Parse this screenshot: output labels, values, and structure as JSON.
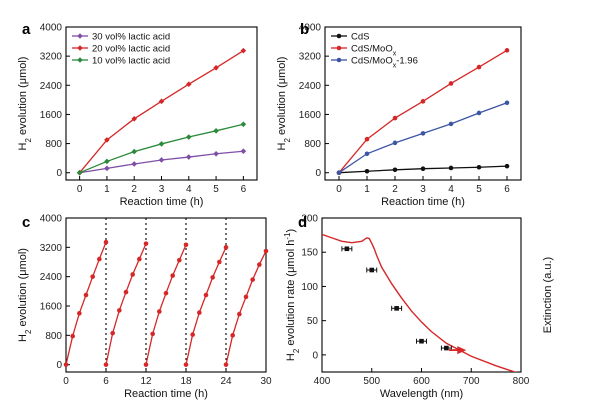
{
  "chart_data": [
    {
      "panel_label": "a",
      "type": "line",
      "xlabel": "Reaction time (h)",
      "ylabel": [
        "H",
        "2",
        " evolution (μmol)"
      ],
      "xlim": [
        -0.5,
        6.5
      ],
      "ylim": [
        -200,
        4000
      ],
      "xticks": [
        "0",
        "1",
        "2",
        "3",
        "4",
        "5",
        "6"
      ],
      "yticks": [
        "0",
        "800",
        "1600",
        "2400",
        "3200",
        "4000"
      ],
      "legend_position": "top-left",
      "series": [
        {
          "name": "30 vol% lactic acid",
          "color": "#7f4fa8",
          "marker": "diamond",
          "x": [
            0,
            1,
            2,
            3,
            4,
            5,
            6
          ],
          "y": [
            0,
            120,
            240,
            350,
            430,
            520,
            590
          ]
        },
        {
          "name": "20 vol% lactic acid",
          "color": "#d62728",
          "marker": "diamond",
          "x": [
            0,
            1,
            2,
            3,
            4,
            5,
            6
          ],
          "y": [
            0,
            900,
            1480,
            1960,
            2430,
            2880,
            3350
          ]
        },
        {
          "name": "10 vol% lactic acid",
          "color": "#2a8a3a",
          "marker": "diamond",
          "x": [
            0,
            1,
            2,
            3,
            4,
            5,
            6
          ],
          "y": [
            0,
            310,
            580,
            790,
            980,
            1150,
            1330
          ]
        }
      ]
    },
    {
      "panel_label": "b",
      "type": "line",
      "xlabel": "Reaction time (h)",
      "ylabel": [
        "H",
        "2",
        " evolution (μmol)"
      ],
      "xlim": [
        -0.5,
        6.5
      ],
      "ylim": [
        -200,
        4000
      ],
      "xticks": [
        "0",
        "1",
        "2",
        "3",
        "4",
        "5",
        "6"
      ],
      "yticks": [
        "0",
        "800",
        "1600",
        "2400",
        "3200",
        "4000"
      ],
      "legend_position": "top-left",
      "series": [
        {
          "name": "CdS",
          "name_sub": "",
          "name_tail": "",
          "color": "#111111",
          "marker": "circle",
          "x": [
            0,
            1,
            2,
            3,
            4,
            5,
            6
          ],
          "y": [
            0,
            40,
            80,
            110,
            130,
            150,
            180
          ]
        },
        {
          "name": "CdS/MoO",
          "name_sub": "x",
          "name_tail": "",
          "color": "#d62728",
          "marker": "circle",
          "x": [
            0,
            1,
            2,
            3,
            4,
            5,
            6
          ],
          "y": [
            0,
            920,
            1500,
            1960,
            2450,
            2900,
            3360
          ]
        },
        {
          "name": "CdS/MoO",
          "name_sub": "x",
          "name_tail": "-1.96",
          "color": "#3c55a5",
          "marker": "circle",
          "x": [
            0,
            1,
            2,
            3,
            4,
            5,
            6
          ],
          "y": [
            0,
            520,
            820,
            1080,
            1340,
            1640,
            1920
          ]
        }
      ]
    },
    {
      "panel_label": "c",
      "type": "line",
      "xlabel": "Reaction time (h)",
      "ylabel": [
        "H",
        "2",
        " evolution (μmol)"
      ],
      "xlim": [
        0,
        30
      ],
      "ylim": [
        -200,
        4000
      ],
      "xticks": [
        "0",
        "6",
        "12",
        "18",
        "24",
        "30"
      ],
      "yticks": [
        "0",
        "800",
        "1600",
        "2400",
        "3200",
        "4000"
      ],
      "cycle_dividers_x": [
        6,
        12,
        18,
        24
      ],
      "series": [
        {
          "name": "",
          "color": "#d62728",
          "marker": "circle",
          "cycles": [
            {
              "x": [
                0,
                1,
                2,
                3,
                4,
                5,
                6
              ],
              "y": [
                0,
                780,
                1400,
                1900,
                2400,
                2880,
                3340
              ]
            },
            {
              "x": [
                6,
                7,
                8,
                9,
                10,
                11,
                12
              ],
              "y": [
                0,
                860,
                1480,
                1980,
                2460,
                2880,
                3300
              ]
            },
            {
              "x": [
                12,
                13,
                14,
                15,
                16,
                17,
                18
              ],
              "y": [
                0,
                840,
                1450,
                1950,
                2430,
                2850,
                3270
              ]
            },
            {
              "x": [
                18,
                19,
                20,
                21,
                22,
                23,
                24
              ],
              "y": [
                0,
                820,
                1420,
                1900,
                2380,
                2800,
                3200
              ]
            },
            {
              "x": [
                24,
                25,
                26,
                27,
                28,
                29,
                30
              ],
              "y": [
                0,
                800,
                1380,
                1850,
                2320,
                2730,
                3100
              ]
            }
          ]
        }
      ]
    },
    {
      "panel_label": "d",
      "type": "scatter",
      "xlabel": "Wavelength (nm)",
      "ylabel": [
        "H",
        "2",
        " evolution rate (μmol h",
        "-1",
        ")"
      ],
      "ylabel_right": "Extinction (a.u.)",
      "xlim": [
        400,
        800
      ],
      "ylim": [
        -25,
        200
      ],
      "xticks": [
        "400",
        "500",
        "600",
        "700",
        "800"
      ],
      "yticks": [
        "0",
        "50",
        "100",
        "150",
        "200"
      ],
      "points": {
        "color": "#111111",
        "x": [
          450,
          500,
          550,
          600,
          650
        ],
        "y": [
          155,
          124,
          68,
          20,
          10
        ],
        "xerr": 10
      },
      "extinction_curve": {
        "color": "#d62728",
        "x": [
          400,
          420,
          440,
          460,
          480,
          490,
          495,
          500,
          505,
          510,
          520,
          540,
          560,
          580,
          600,
          620,
          650,
          700,
          750,
          800
        ],
        "y": [
          176,
          171,
          166,
          164,
          166,
          171,
          170,
          163,
          155,
          145,
          128,
          104,
          83,
          64,
          48,
          34,
          17,
          -2,
          -16,
          -28
        ]
      },
      "arrow": {
        "color": "#d62728",
        "x_from": 655,
        "x_to": 690,
        "y": 7
      }
    }
  ]
}
